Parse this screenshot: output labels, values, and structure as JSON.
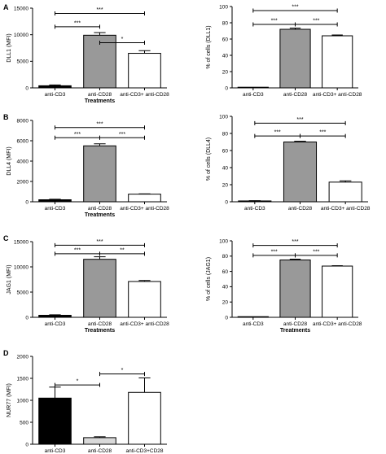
{
  "chart_data": [
    {
      "panel": "A",
      "type": "bar",
      "ylabel": "DLL1 (MFI)",
      "xlabel": "Treatments",
      "ylim": [
        0,
        15000
      ],
      "yticks": [
        0,
        5000,
        10000,
        15000
      ],
      "categories": [
        "anti-CD3",
        "anti-CD28",
        "anti-CD3+ anti-CD28"
      ],
      "values": [
        400,
        9900,
        6500
      ],
      "errors": [
        150,
        500,
        500
      ],
      "fills": [
        "#000000",
        "#999999",
        "#ffffff"
      ],
      "significance": [
        {
          "from": 0,
          "to": 1,
          "label": "***",
          "y": 11500
        },
        {
          "from": 1,
          "to": 2,
          "label": "*",
          "y": 8500
        },
        {
          "from": 0,
          "to": 2,
          "label": "***",
          "y": 14000
        }
      ]
    },
    {
      "panel": "",
      "type": "bar",
      "ylabel": "% of cells (DLL1)",
      "xlabel": "",
      "ylim": [
        0,
        100
      ],
      "yticks": [
        0,
        20,
        40,
        60,
        80,
        100
      ],
      "categories": [
        "anti-CD3",
        "anti-CD28",
        "anti-CD3+ anti-CD28"
      ],
      "values": [
        0,
        72,
        64
      ],
      "errors": [
        0,
        1.5,
        1
      ],
      "fills": [
        "#000000",
        "#999999",
        "#ffffff"
      ],
      "significance": [
        {
          "from": 0,
          "to": 1,
          "label": "***",
          "y": 78
        },
        {
          "from": 1,
          "to": 2,
          "label": "***",
          "y": 78
        },
        {
          "from": 0,
          "to": 2,
          "label": "***",
          "y": 95
        }
      ]
    },
    {
      "panel": "B",
      "type": "bar",
      "ylabel": "DLL4 (MFI)",
      "xlabel": "Treatments",
      "ylim": [
        0,
        8000
      ],
      "yticks": [
        0,
        2000,
        4000,
        6000,
        8000
      ],
      "categories": [
        "anti-CD3",
        "anti-CD28",
        "anti-CD3+ anti-CD28"
      ],
      "values": [
        200,
        5500,
        750
      ],
      "errors": [
        50,
        200,
        30
      ],
      "fills": [
        "#000000",
        "#999999",
        "#ffffff"
      ],
      "significance": [
        {
          "from": 0,
          "to": 1,
          "label": "***",
          "y": 6300
        },
        {
          "from": 1,
          "to": 2,
          "label": "***",
          "y": 6300
        },
        {
          "from": 0,
          "to": 2,
          "label": "***",
          "y": 7300
        }
      ]
    },
    {
      "panel": "",
      "type": "bar",
      "ylabel": "% of cells (DLL4)",
      "xlabel": "",
      "ylim": [
        0,
        100
      ],
      "yticks": [
        0,
        20,
        40,
        60,
        80,
        100
      ],
      "categories": [
        "anti-CD3",
        "anti-CD28",
        "anti-CD3+ anti-CD28"
      ],
      "values": [
        1,
        70,
        23
      ],
      "errors": [
        0.3,
        0.8,
        1.5
      ],
      "fills": [
        "#000000",
        "#999999",
        "#ffffff"
      ],
      "significance": [
        {
          "from": 0,
          "to": 1,
          "label": "***",
          "y": 77
        },
        {
          "from": 1,
          "to": 2,
          "label": "***",
          "y": 77
        },
        {
          "from": 0,
          "to": 2,
          "label": "***",
          "y": 92
        }
      ]
    },
    {
      "panel": "C",
      "type": "bar",
      "ylabel": "JAG1 (MFI)",
      "xlabel": "Treatments",
      "ylim": [
        0,
        15000
      ],
      "yticks": [
        0,
        5000,
        10000,
        15000
      ],
      "categories": [
        "anti-CD3",
        "anti-CD28",
        "anti-CD3+ anti-CD28"
      ],
      "values": [
        400,
        11500,
        7100
      ],
      "errors": [
        100,
        500,
        200
      ],
      "fills": [
        "#000000",
        "#999999",
        "#ffffff"
      ],
      "significance": [
        {
          "from": 0,
          "to": 1,
          "label": "***",
          "y": 12600
        },
        {
          "from": 1,
          "to": 2,
          "label": "**",
          "y": 12600
        },
        {
          "from": 0,
          "to": 2,
          "label": "***",
          "y": 14300
        }
      ]
    },
    {
      "panel": "",
      "type": "bar",
      "ylabel": "% of cells (JAG1)",
      "xlabel": "Treatments",
      "ylim": [
        0,
        100
      ],
      "yticks": [
        0,
        20,
        40,
        60,
        80,
        100
      ],
      "categories": [
        "anti-CD3",
        "anti-CD28",
        "anti-CD3+ anti-CD28"
      ],
      "values": [
        0,
        75,
        67
      ],
      "errors": [
        0,
        1,
        0.5
      ],
      "fills": [
        "#000000",
        "#999999",
        "#ffffff"
      ],
      "significance": [
        {
          "from": 0,
          "to": 1,
          "label": "***",
          "y": 81
        },
        {
          "from": 1,
          "to": 2,
          "label": "***",
          "y": 81
        },
        {
          "from": 0,
          "to": 2,
          "label": "***",
          "y": 94
        }
      ]
    },
    {
      "panel": "D",
      "type": "bar",
      "ylabel": "NUR77 (MFI)",
      "xlabel": "",
      "ylim": [
        0,
        2000
      ],
      "yticks": [
        0,
        500,
        1000,
        1500,
        2000
      ],
      "categories": [
        "anti-CD3",
        "anti-CD28",
        "anti-CD3+CD28"
      ],
      "values": [
        1050,
        150,
        1180
      ],
      "errors": [
        250,
        20,
        330
      ],
      "fills": [
        "#000000",
        "#d9d9d9",
        "#ffffff"
      ],
      "significance": [
        {
          "from": 0,
          "to": 1,
          "label": "*",
          "y": 1350
        },
        {
          "from": 1,
          "to": 2,
          "label": "*",
          "y": 1600
        }
      ]
    }
  ]
}
